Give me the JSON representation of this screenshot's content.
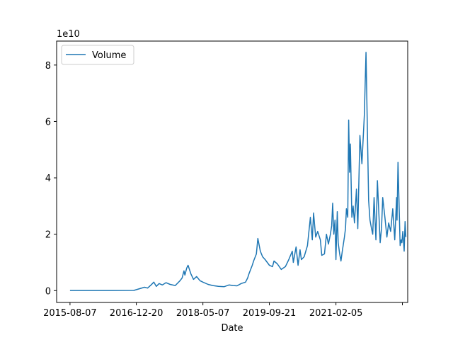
{
  "chart_data": {
    "type": "line",
    "title": "",
    "xlabel": "Date",
    "ylabel": "",
    "y_multiplier_label": "1e10",
    "x_tick_labels": [
      "2015-08-07",
      "2016-12-20",
      "2018-05-07",
      "2019-09-21",
      "2021-02-05",
      ""
    ],
    "x_ticks": [
      "2015-08-07",
      "2016-12-20",
      "2018-05-07",
      "2019-09-21",
      "2021-02-05",
      "2022-06-22"
    ],
    "xlim": [
      "2015-04-28",
      "2022-08-01"
    ],
    "y_ticks": [
      0,
      2,
      4,
      6,
      8
    ],
    "ylim": [
      -0.42,
      8.85
    ],
    "grid": false,
    "legend_position": "upper left",
    "color": "#1f77b4",
    "series": [
      {
        "name": "Volume",
        "x": [
          "2015-08-07",
          "2016-01-01",
          "2016-06-01",
          "2016-12-01",
          "2017-02-20",
          "2017-03-15",
          "2017-04-10",
          "2017-05-01",
          "2017-05-20",
          "2017-06-10",
          "2017-07-05",
          "2017-08-01",
          "2017-09-01",
          "2017-10-10",
          "2017-11-15",
          "2017-12-01",
          "2017-12-15",
          "2017-12-22",
          "2018-01-05",
          "2018-01-15",
          "2018-02-05",
          "2018-02-25",
          "2018-03-20",
          "2018-04-15",
          "2018-05-07",
          "2018-06-15",
          "2018-07-20",
          "2018-09-01",
          "2018-10-15",
          "2018-11-20",
          "2018-12-20",
          "2019-01-20",
          "2019-02-20",
          "2019-03-25",
          "2019-04-10",
          "2019-04-20",
          "2019-05-15",
          "2019-05-25",
          "2019-06-15",
          "2019-06-26",
          "2019-07-15",
          "2019-08-01",
          "2019-08-20",
          "2019-09-21",
          "2019-10-15",
          "2019-10-26",
          "2019-11-20",
          "2019-12-20",
          "2020-01-20",
          "2020-02-15",
          "2020-03-12",
          "2020-03-20",
          "2020-04-10",
          "2020-04-25",
          "2020-05-10",
          "2020-05-20",
          "2020-06-10",
          "2020-07-05",
          "2020-07-27",
          "2020-08-10",
          "2020-08-20",
          "2020-09-05",
          "2020-09-20",
          "2020-10-10",
          "2020-10-21",
          "2020-11-10",
          "2020-11-25",
          "2020-12-10",
          "2020-12-25",
          "2021-01-04",
          "2021-01-11",
          "2021-01-20",
          "2021-01-29",
          "2021-02-05",
          "2021-02-15",
          "2021-02-22",
          "2021-03-05",
          "2021-03-15",
          "2021-03-25",
          "2021-04-10",
          "2021-04-18",
          "2021-04-25",
          "2021-05-05",
          "2021-05-12",
          "2021-05-19",
          "2021-05-25",
          "2021-06-05",
          "2021-06-15",
          "2021-06-25",
          "2021-07-10",
          "2021-07-20",
          "2021-08-05",
          "2021-08-20",
          "2021-09-07",
          "2021-09-20",
          "2021-10-10",
          "2021-10-20",
          "2021-11-01",
          "2021-11-10",
          "2021-11-20",
          "2021-12-04",
          "2021-12-15",
          "2022-01-05",
          "2022-01-15",
          "2022-01-24",
          "2022-02-10",
          "2022-02-25",
          "2022-03-10",
          "2022-03-25",
          "2022-04-10",
          "2022-04-25",
          "2022-05-09",
          "2022-05-12",
          "2022-05-20",
          "2022-06-05",
          "2022-06-13",
          "2022-06-18",
          "2022-06-25",
          "2022-07-05",
          "2022-07-12",
          "2022-07-18"
        ],
        "values": [
          0.005,
          0.004,
          0.005,
          0.008,
          0.12,
          0.09,
          0.2,
          0.3,
          0.15,
          0.25,
          0.2,
          0.28,
          0.22,
          0.18,
          0.35,
          0.45,
          0.7,
          0.55,
          0.8,
          0.9,
          0.6,
          0.4,
          0.5,
          0.35,
          0.3,
          0.22,
          0.18,
          0.15,
          0.14,
          0.2,
          0.18,
          0.17,
          0.25,
          0.3,
          0.45,
          0.6,
          0.9,
          1.05,
          1.3,
          1.85,
          1.4,
          1.2,
          1.1,
          0.9,
          0.85,
          1.05,
          0.95,
          0.75,
          0.85,
          1.1,
          1.4,
          1.0,
          1.55,
          0.9,
          1.45,
          1.1,
          1.2,
          1.6,
          2.6,
          1.8,
          2.75,
          1.9,
          2.1,
          1.8,
          1.25,
          1.3,
          2.0,
          1.65,
          2.0,
          2.3,
          3.1,
          2.0,
          2.5,
          1.1,
          2.8,
          1.7,
          1.3,
          1.05,
          1.4,
          1.9,
          2.2,
          2.9,
          2.6,
          6.05,
          4.2,
          5.2,
          2.6,
          3.0,
          2.4,
          3.6,
          2.2,
          5.5,
          4.5,
          6.2,
          8.45,
          3.2,
          2.5,
          2.2,
          2.0,
          3.3,
          1.8,
          3.9,
          1.7,
          2.2,
          3.3,
          2.6,
          1.9,
          2.4,
          2.1,
          2.9,
          1.8,
          3.3,
          2.5,
          4.55,
          1.6,
          1.8,
          1.7,
          2.1,
          1.4,
          2.45,
          1.9
        ]
      }
    ]
  }
}
